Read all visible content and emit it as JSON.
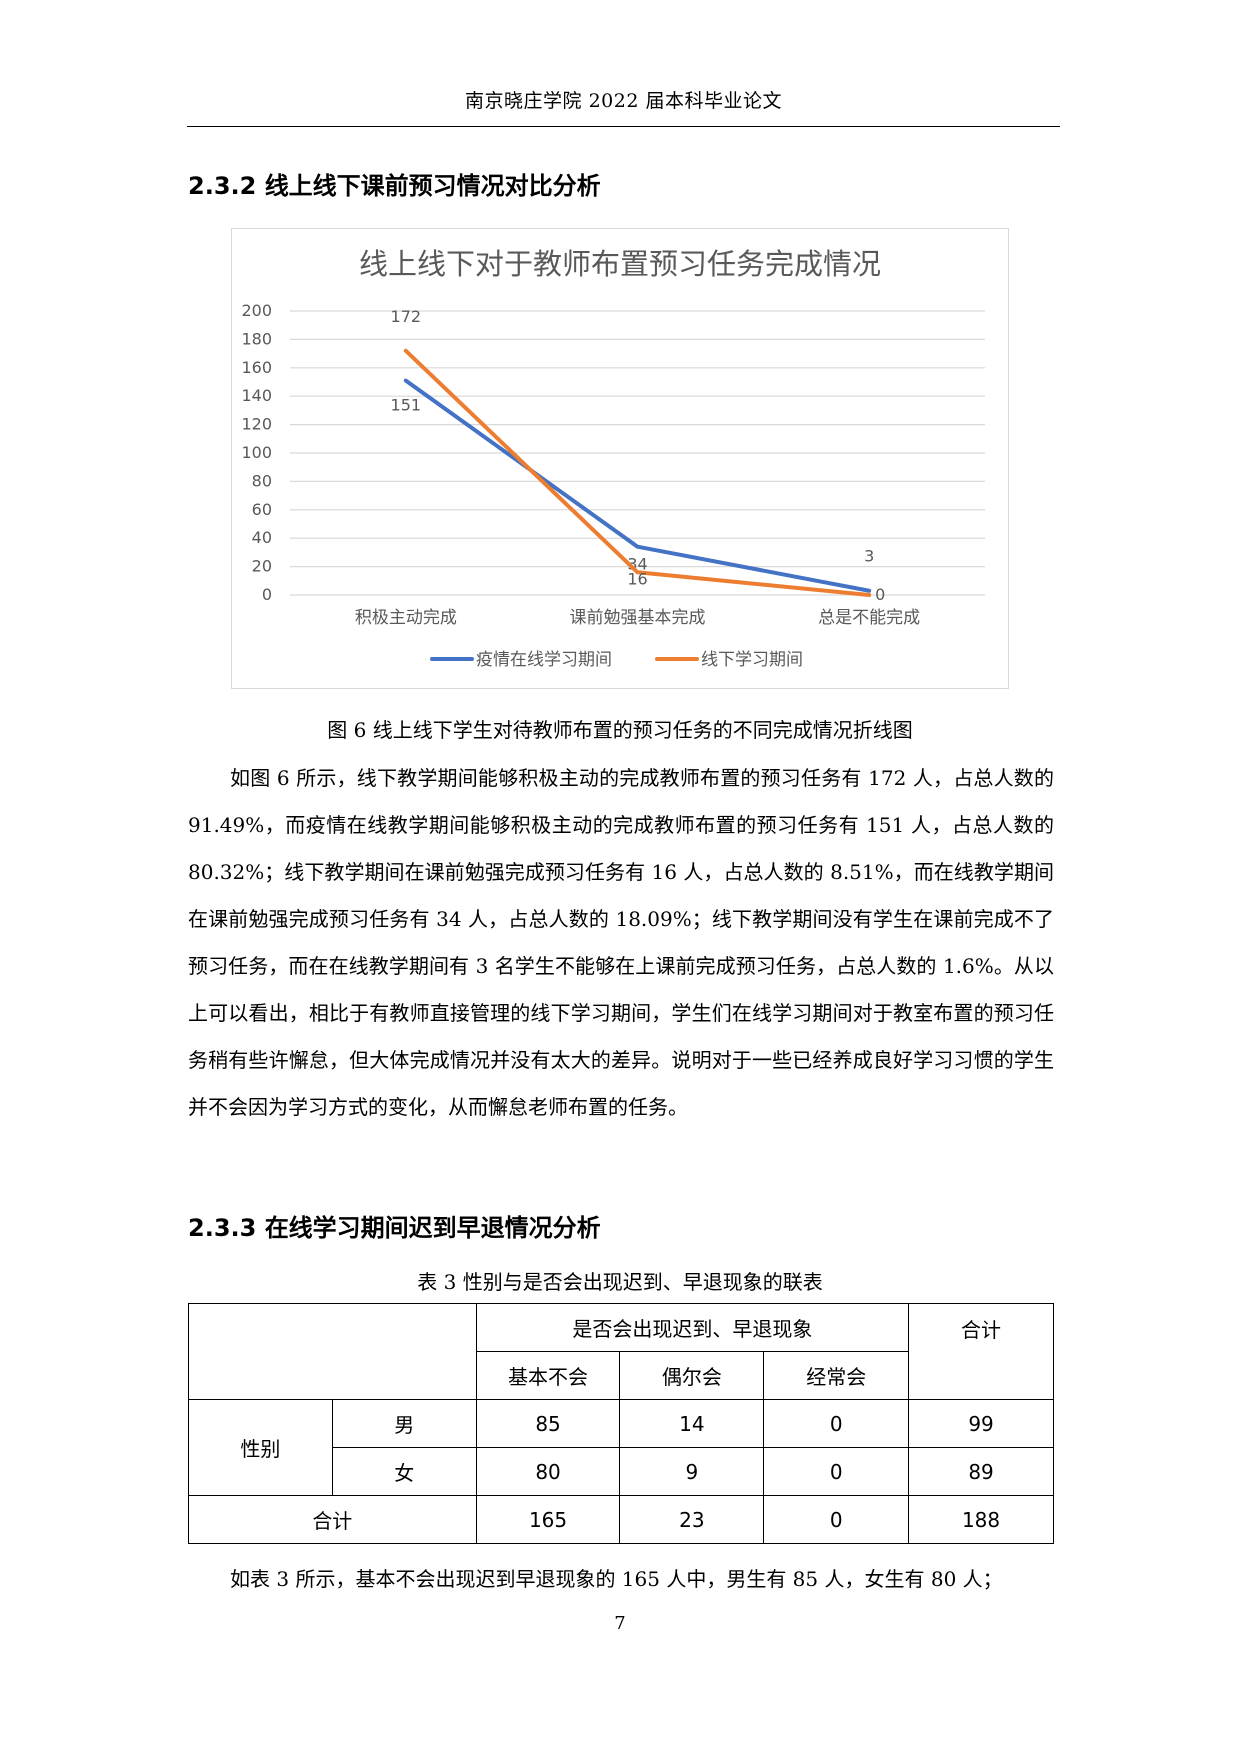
{
  "header": {
    "title": "南京晓庄学院 2022 届本科毕业论文"
  },
  "section_232": {
    "title": "2.3.2 线上线下课前预习情况对比分析"
  },
  "chart_data": {
    "type": "line",
    "title": "线上线下对于教师布置预习任务完成情况",
    "categories": [
      "积极主动完成",
      "课前勉强基本完成",
      "总是不能完成"
    ],
    "series": [
      {
        "name": "疫情在线学习期间",
        "values": [
          151,
          34,
          3
        ],
        "color": "#4472C4"
      },
      {
        "name": "线下学习期间",
        "values": [
          172,
          16,
          0
        ],
        "color": "#ED7D31"
      }
    ],
    "ylim": [
      0,
      200
    ],
    "yticks": [
      0,
      20,
      40,
      60,
      80,
      100,
      120,
      140,
      160,
      180,
      200
    ],
    "grid": true,
    "legend": "bottom",
    "xlabel": "",
    "ylabel": ""
  },
  "figure_caption": "图 6  线上线下学生对待教师布置的预习任务的不同完成情况折线图",
  "paragraph_1": "如图 6 所示，线下教学期间能够积极主动的完成教师布置的预习任务有 172 人，占总人数的 91.49%，而疫情在线教学期间能够积极主动的完成教师布置的预习任务有 151 人，占总人数的 80.32%；线下教学期间在课前勉强完成预习任务有 16 人，占总人数的 8.51%，而在线教学期间在课前勉强完成预习任务有 34 人，占总人数的 18.09%；线下教学期间没有学生在课前完成不了预习任务，而在在线教学期间有 3 名学生不能够在上课前完成预习任务，占总人数的 1.6%。从以上可以看出，相比于有教师直接管理的线下学习期间，学生们在线学习期间对于教室布置的预习任务稍有些许懈怠，但大体完成情况并没有太大的差异。说明对于一些已经养成良好学习习惯的学生并不会因为学习方式的变化，从而懈怠老师布置的任务。",
  "section_233": {
    "title": "2.3.3 在线学习期间迟到早退情况分析"
  },
  "table_caption": "表 3  性别与是否会出现迟到、早退现象的联表",
  "table": {
    "group_header": "是否会出现迟到、早退现象",
    "total_header": "合计",
    "sub_headers": [
      "基本不会",
      "偶尔会",
      "经常会"
    ],
    "row_group_label": "性别",
    "rows": [
      {
        "label": "男",
        "values": [
          "85",
          "14",
          "0",
          "99"
        ]
      },
      {
        "label": "女",
        "values": [
          "80",
          "9",
          "0",
          "89"
        ]
      }
    ],
    "total_row": {
      "label": "合计",
      "values": [
        "165",
        "23",
        "0",
        "188"
      ]
    }
  },
  "paragraph_2": "如表 3 所示，基本不会出现迟到早退现象的 165 人中，男生有 85 人，女生有 80 人；",
  "page_number": "7"
}
